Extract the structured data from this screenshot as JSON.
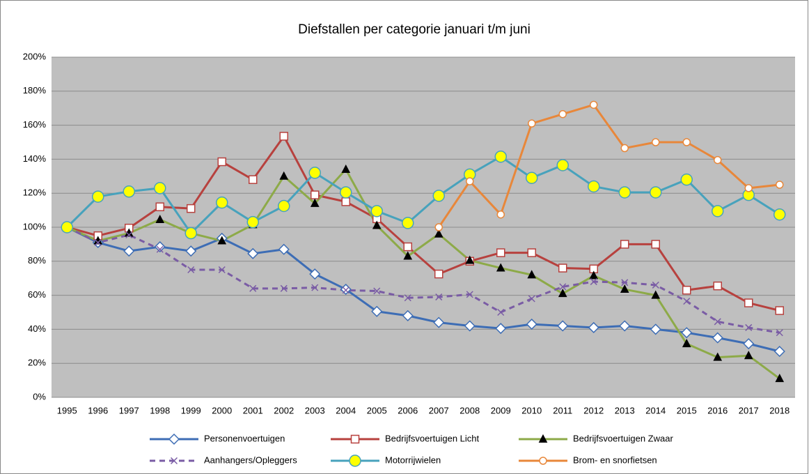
{
  "chart_data": {
    "type": "line",
    "title": "Diefstallen per categorie januari t/m juni",
    "categories": [
      "1995",
      "1996",
      "1997",
      "1998",
      "1999",
      "2000",
      "2001",
      "2002",
      "2003",
      "2004",
      "2005",
      "2006",
      "2007",
      "2008",
      "2009",
      "2010",
      "2011",
      "2012",
      "2013",
      "2014",
      "2015",
      "2016",
      "2017",
      "2018"
    ],
    "ylim": [
      0,
      200
    ],
    "yticks": [
      {
        "value": 0,
        "label": "0%"
      },
      {
        "value": 20,
        "label": "20%"
      },
      {
        "value": 40,
        "label": "40%"
      },
      {
        "value": 60,
        "label": "60%"
      },
      {
        "value": 80,
        "label": "80%"
      },
      {
        "value": 100,
        "label": "100%"
      },
      {
        "value": 120,
        "label": "120%"
      },
      {
        "value": 140,
        "label": "140%"
      },
      {
        "value": 160,
        "label": "160%"
      },
      {
        "value": 180,
        "label": "180%"
      },
      {
        "value": 200,
        "label": "200%"
      }
    ],
    "grid": true,
    "legend": "bottom",
    "series": [
      {
        "name": "Personenvoertuigen",
        "color": "#3d6db5",
        "marker": "diamond",
        "marker_fill": "#ffffff",
        "dashed": false,
        "values": [
          100,
          91,
          86,
          88.5,
          86,
          93.5,
          84.5,
          87,
          72.5,
          63.5,
          50.5,
          48,
          44,
          42,
          40.5,
          43,
          42,
          41,
          42,
          40,
          38,
          35,
          31.5,
          27
        ]
      },
      {
        "name": "Bedrijfsvoertuigen Licht",
        "color": "#b7413e",
        "marker": "square",
        "marker_fill": "#ffffff",
        "dashed": false,
        "values": [
          100,
          95,
          99.5,
          112,
          111,
          138.5,
          128,
          153.5,
          119,
          115,
          105,
          88.5,
          72.5,
          80,
          85,
          85,
          76,
          75.5,
          90,
          90,
          63,
          65.5,
          55.5,
          51
        ]
      },
      {
        "name": "Bedrijfsvoertuigen Zwaar",
        "color": "#8daa48",
        "marker": "triangle",
        "marker_fill": "#000000",
        "dashed": false,
        "values": [
          100,
          92,
          96.5,
          104.5,
          96.5,
          92,
          101.5,
          130,
          114,
          134,
          101,
          83,
          96,
          80.5,
          76,
          72,
          61,
          71.5,
          63.5,
          60,
          31.5,
          23.5,
          24.5,
          11
        ]
      },
      {
        "name": "Aanhangers/Opleggers",
        "color": "#7a5ca5",
        "marker": "x",
        "marker_fill": "none",
        "dashed": true,
        "values": [
          100,
          91,
          95.5,
          87,
          75,
          75,
          64,
          64,
          64.5,
          63,
          62.5,
          58.5,
          59,
          60.5,
          50,
          58,
          65,
          68,
          67.5,
          66,
          56.5,
          44.5,
          41,
          38
        ]
      },
      {
        "name": "Motorrijwielen",
        "color": "#47a2bc",
        "marker": "circle",
        "marker_fill": "#ffff00",
        "dashed": false,
        "values": [
          100,
          118,
          121,
          123,
          96.5,
          114.5,
          103,
          112.5,
          132,
          120.5,
          109.5,
          102.5,
          118.5,
          131,
          141.5,
          129,
          136.5,
          124,
          120.5,
          120.5,
          128,
          109.5,
          119,
          107.5
        ]
      },
      {
        "name": "Brom- en snorfietsen",
        "color": "#e8873a",
        "marker": "circle",
        "marker_fill": "#ffffff",
        "dashed": false,
        "values": [
          null,
          null,
          null,
          null,
          null,
          null,
          null,
          null,
          null,
          null,
          null,
          null,
          100,
          127,
          107.5,
          161,
          166.5,
          172,
          146.5,
          150,
          150,
          139.5,
          123,
          125
        ]
      }
    ]
  }
}
